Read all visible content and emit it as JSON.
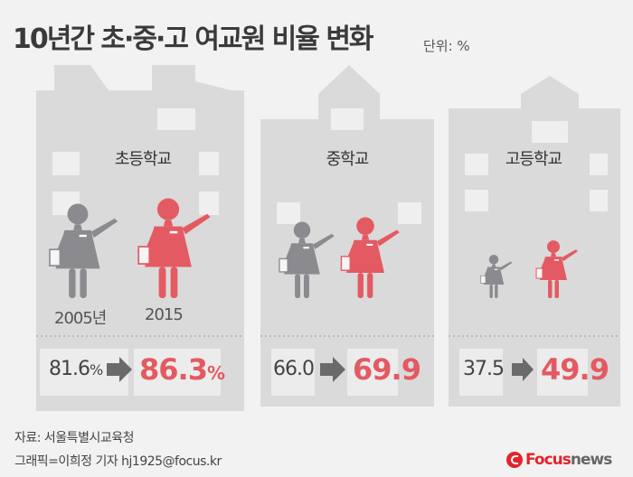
{
  "title": "10년간 초·중·고 여교원 비율 변화",
  "unit": "단위: %",
  "chart_data": {
    "type": "bar",
    "title": "10년간 초·중·고 여교원 비율 변화",
    "unit": "%",
    "categories": [
      "초등학교",
      "중학교",
      "고등학교"
    ],
    "series": [
      {
        "name": "2005년",
        "values": [
          81.6,
          66.0,
          37.5
        ]
      },
      {
        "name": "2015",
        "values": [
          86.3,
          69.9,
          49.9
        ]
      }
    ]
  },
  "labels": {
    "elementary": "초등학교",
    "middle": "중학교",
    "high": "고등학교",
    "year_old": "2005년",
    "year_new": "2015",
    "elem_old": "81.6",
    "elem_new": "86.3",
    "mid_old": "66.0",
    "mid_new": "69.9",
    "high_old": "37.5",
    "high_new": "49.9",
    "pct": "%"
  },
  "footer": {
    "source": "자료: 서울특별시교육청",
    "credit": "그래픽=이희정 기자 hj1925@focus.kr"
  },
  "logo": {
    "brand": "Focus",
    "suffix": "news"
  },
  "colors": {
    "female_old": "#8b8a8f",
    "female_new": "#e45a62",
    "building": "#dadada",
    "window": "#efefef",
    "arrow": "#6a6a6a"
  }
}
